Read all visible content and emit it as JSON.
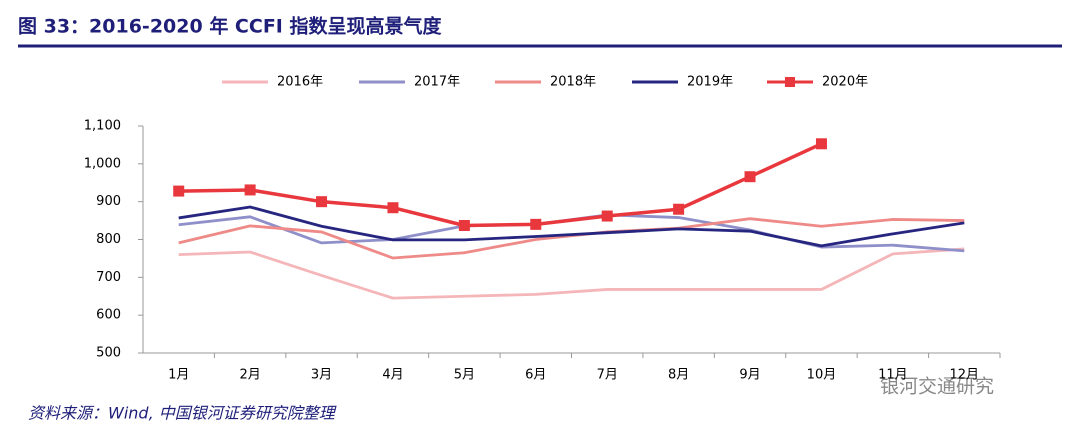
{
  "chart_data": {
    "type": "line",
    "title": "图 33：2016-2020 年 CCFI 指数呈现高景气度",
    "source": "资料来源：Wind, 中国银河证券研究院整理",
    "watermark": "银河交通研究",
    "categories": [
      "1月",
      "2月",
      "3月",
      "4月",
      "5月",
      "6月",
      "7月",
      "8月",
      "9月",
      "10月",
      "11月",
      "12月"
    ],
    "series": [
      {
        "name": "2016年",
        "color": "#f4b6b8",
        "values": [
          760,
          767,
          705,
          645,
          650,
          655,
          668,
          668,
          668,
          668,
          762,
          775
        ]
      },
      {
        "name": "2017年",
        "color": "#8f8fc9",
        "values": [
          839,
          860,
          791,
          800,
          836,
          840,
          865,
          858,
          825,
          780,
          785,
          770
        ]
      },
      {
        "name": "2018年",
        "color": "#ee8a87",
        "values": [
          791,
          836,
          820,
          751,
          765,
          800,
          820,
          830,
          855,
          835,
          853,
          850
        ]
      },
      {
        "name": "2019年",
        "color": "#262680",
        "values": [
          857,
          886,
          835,
          799,
          799,
          808,
          818,
          828,
          822,
          783,
          815,
          844
        ]
      },
      {
        "name": "2020年",
        "color": "#e8383d",
        "marker": "square",
        "values": [
          928,
          931,
          900,
          884,
          837,
          840,
          862,
          880,
          966,
          1053,
          null,
          null
        ]
      }
    ],
    "ylim": [
      500,
      1100
    ],
    "yticks": [
      500,
      600,
      700,
      800,
      900,
      {
        "value": 1000,
        "label": "1,000"
      },
      {
        "value": 1100,
        "label": "1,100"
      }
    ],
    "grid": false,
    "legend": "top"
  }
}
